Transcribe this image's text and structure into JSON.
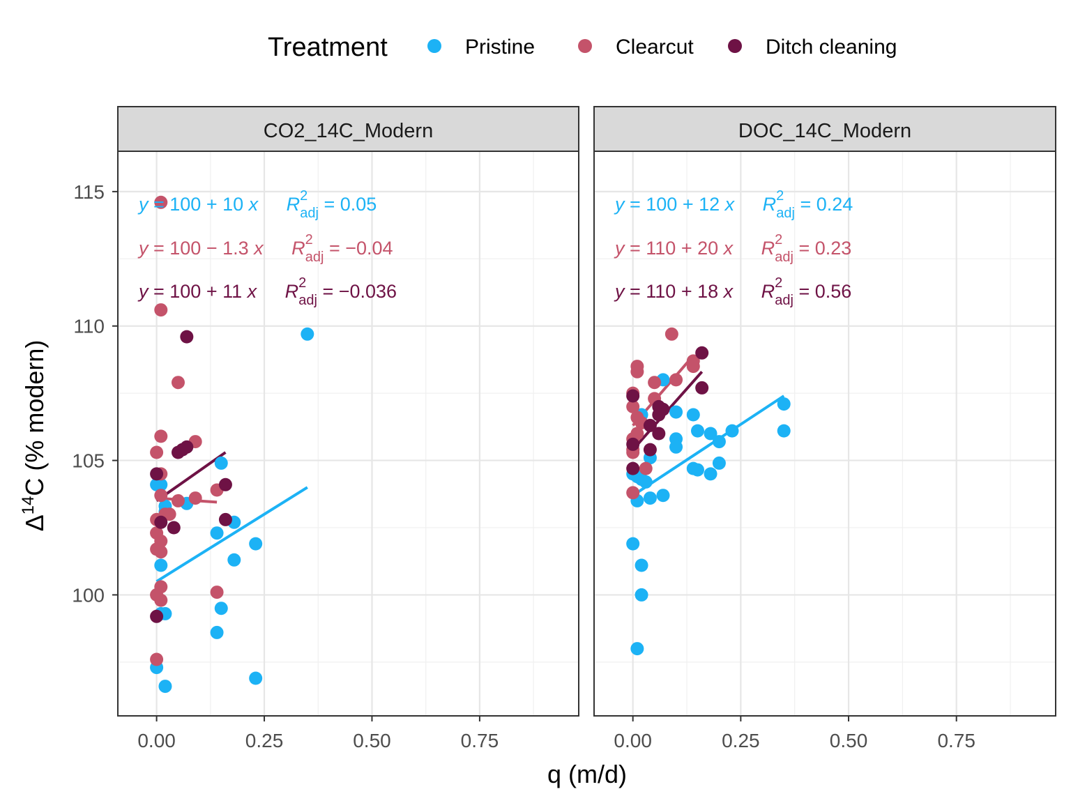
{
  "chart_data": {
    "type": "scatter",
    "xlabel": "q (m/d)",
    "ylabel": "Δ14C (% modern)",
    "xlim": [
      -0.09,
      0.98
    ],
    "ylim": [
      95.5,
      116.5
    ],
    "x_ticks": [
      0,
      0.25,
      0.5,
      0.75
    ],
    "x_tick_labels": [
      "0.00",
      "0.25",
      "0.50",
      "0.75"
    ],
    "y_ticks": [
      100,
      105,
      110,
      115
    ],
    "y_tick_labels": [
      "100",
      "105",
      "110",
      "115"
    ],
    "grid": true,
    "legend": {
      "title": "Treatment",
      "position": "top",
      "entries": [
        "Pristine",
        "Clearcut",
        "Ditch cleaning"
      ]
    },
    "colors": {
      "Pristine": "#1cb2f5",
      "Clearcut": "#c4536a",
      "Ditch cleaning": "#6e1245"
    },
    "panels": [
      {
        "strip": "CO2_14C_Modern",
        "series": [
          {
            "name": "Pristine",
            "points": [
              [
                0,
                104.1
              ],
              [
                0.01,
                104.1
              ],
              [
                0.02,
                103.3
              ],
              [
                0.02,
                103.1
              ],
              [
                0.07,
                103.4
              ],
              [
                0.01,
                101.1
              ],
              [
                0.01,
                99.3
              ],
              [
                0.02,
                99.3
              ],
              [
                0,
                97.3
              ],
              [
                0.02,
                96.6
              ],
              [
                0.15,
                104.9
              ],
              [
                0.14,
                102.3
              ],
              [
                0.18,
                102.7
              ],
              [
                0.18,
                101.3
              ],
              [
                0.15,
                99.5
              ],
              [
                0.14,
                98.6
              ],
              [
                0.23,
                101.9
              ],
              [
                0.23,
                96.9
              ],
              [
                0.35,
                109.7
              ]
            ],
            "fit": {
              "x": [
                0,
                0.35
              ],
              "y": [
                100.5,
                104.0
              ]
            },
            "equation": {
              "intercept": "100",
              "sign": "+",
              "slope": "10",
              "r2": "0.05"
            }
          },
          {
            "name": "Clearcut",
            "points": [
              [
                0.01,
                114.6
              ],
              [
                0.01,
                110.6
              ],
              [
                0.05,
                107.9
              ],
              [
                0.01,
                105.9
              ],
              [
                0,
                105.3
              ],
              [
                0.09,
                105.7
              ],
              [
                0.01,
                104.5
              ],
              [
                0.01,
                103.7
              ],
              [
                0.05,
                103.5
              ],
              [
                0.09,
                103.6
              ],
              [
                0.14,
                103.9
              ],
              [
                0,
                102.8
              ],
              [
                0.02,
                103.0
              ],
              [
                0.03,
                103.0
              ],
              [
                0,
                102.3
              ],
              [
                0.01,
                102.0
              ],
              [
                0,
                101.7
              ],
              [
                0.01,
                101.6
              ],
              [
                0.01,
                100.3
              ],
              [
                0,
                100.0
              ],
              [
                0.01,
                99.8
              ],
              [
                0.14,
                100.1
              ],
              [
                0,
                97.6
              ]
            ],
            "fit": {
              "x": [
                0,
                0.14
              ],
              "y": [
                103.6,
                103.45
              ]
            },
            "equation": {
              "intercept": "100",
              "sign": "−",
              "slope": "1.3",
              "r2": "−0.04"
            }
          },
          {
            "name": "Ditch cleaning",
            "points": [
              [
                0.07,
                109.6
              ],
              [
                0.05,
                105.3
              ],
              [
                0.06,
                105.4
              ],
              [
                0.07,
                105.5
              ],
              [
                0,
                104.5
              ],
              [
                0.16,
                104.1
              ],
              [
                0.16,
                102.8
              ],
              [
                0.04,
                102.5
              ],
              [
                0.01,
                102.7
              ],
              [
                0,
                99.2
              ]
            ],
            "fit": {
              "x": [
                0,
                0.16
              ],
              "y": [
                103.5,
                105.3
              ]
            },
            "equation": {
              "intercept": "100",
              "sign": "+",
              "slope": "11",
              "r2": "−0.036"
            }
          }
        ]
      },
      {
        "strip": "DOC_14C_Modern",
        "series": [
          {
            "name": "Pristine",
            "points": [
              [
                0.07,
                108.0
              ],
              [
                0.02,
                106.7
              ],
              [
                0.1,
                106.8
              ],
              [
                0.14,
                106.7
              ],
              [
                0.35,
                107.1
              ],
              [
                0.15,
                106.1
              ],
              [
                0.18,
                106.0
              ],
              [
                0.2,
                105.7
              ],
              [
                0.23,
                106.1
              ],
              [
                0.35,
                106.1
              ],
              [
                0.1,
                105.8
              ],
              [
                0.1,
                105.5
              ],
              [
                0.04,
                105.1
              ],
              [
                0.14,
                104.7
              ],
              [
                0.15,
                104.65
              ],
              [
                0.18,
                104.5
              ],
              [
                0.2,
                104.9
              ],
              [
                0,
                104.5
              ],
              [
                0.01,
                104.4
              ],
              [
                0.02,
                104.3
              ],
              [
                0.03,
                104.2
              ],
              [
                0.07,
                103.7
              ],
              [
                0.04,
                103.6
              ],
              [
                0.01,
                103.5
              ],
              [
                0,
                101.9
              ],
              [
                0.02,
                101.1
              ],
              [
                0.02,
                100.0
              ],
              [
                0.01,
                98.0
              ]
            ],
            "fit": {
              "x": [
                0,
                0.35
              ],
              "y": [
                103.7,
                107.4
              ]
            },
            "equation": {
              "intercept": "100",
              "sign": "+",
              "slope": "12",
              "r2": "0.24"
            }
          },
          {
            "name": "Clearcut",
            "points": [
              [
                0.09,
                109.7
              ],
              [
                0.01,
                108.5
              ],
              [
                0.01,
                108.3
              ],
              [
                0.1,
                108.0
              ],
              [
                0.05,
                107.9
              ],
              [
                0.14,
                108.7
              ],
              [
                0.14,
                108.5
              ],
              [
                0,
                107.5
              ],
              [
                0.05,
                107.3
              ],
              [
                0,
                107.0
              ],
              [
                0.01,
                106.6
              ],
              [
                0.02,
                106.4
              ],
              [
                0.01,
                106.0
              ],
              [
                0,
                105.8
              ],
              [
                0,
                105.3
              ],
              [
                0,
                105.4
              ],
              [
                0.03,
                104.7
              ],
              [
                0,
                103.8
              ]
            ],
            "fit": {
              "x": [
                0,
                0.14
              ],
              "y": [
                106.3,
                108.9
              ]
            },
            "equation": {
              "intercept": "110",
              "sign": "+",
              "slope": "20",
              "r2": "0.23"
            }
          },
          {
            "name": "Ditch cleaning",
            "points": [
              [
                0.16,
                109.0
              ],
              [
                0.16,
                107.7
              ],
              [
                0,
                107.4
              ],
              [
                0.06,
                107.0
              ],
              [
                0.07,
                106.9
              ],
              [
                0.06,
                106.7
              ],
              [
                0.04,
                106.3
              ],
              [
                0.06,
                106.0
              ],
              [
                0,
                105.6
              ],
              [
                0.04,
                105.4
              ],
              [
                0,
                104.7
              ]
            ],
            "fit": {
              "x": [
                0,
                0.16
              ],
              "y": [
                105.4,
                108.3
              ]
            },
            "equation": {
              "intercept": "110",
              "sign": "+",
              "slope": "18",
              "r2": "0.56"
            }
          }
        ]
      }
    ]
  }
}
